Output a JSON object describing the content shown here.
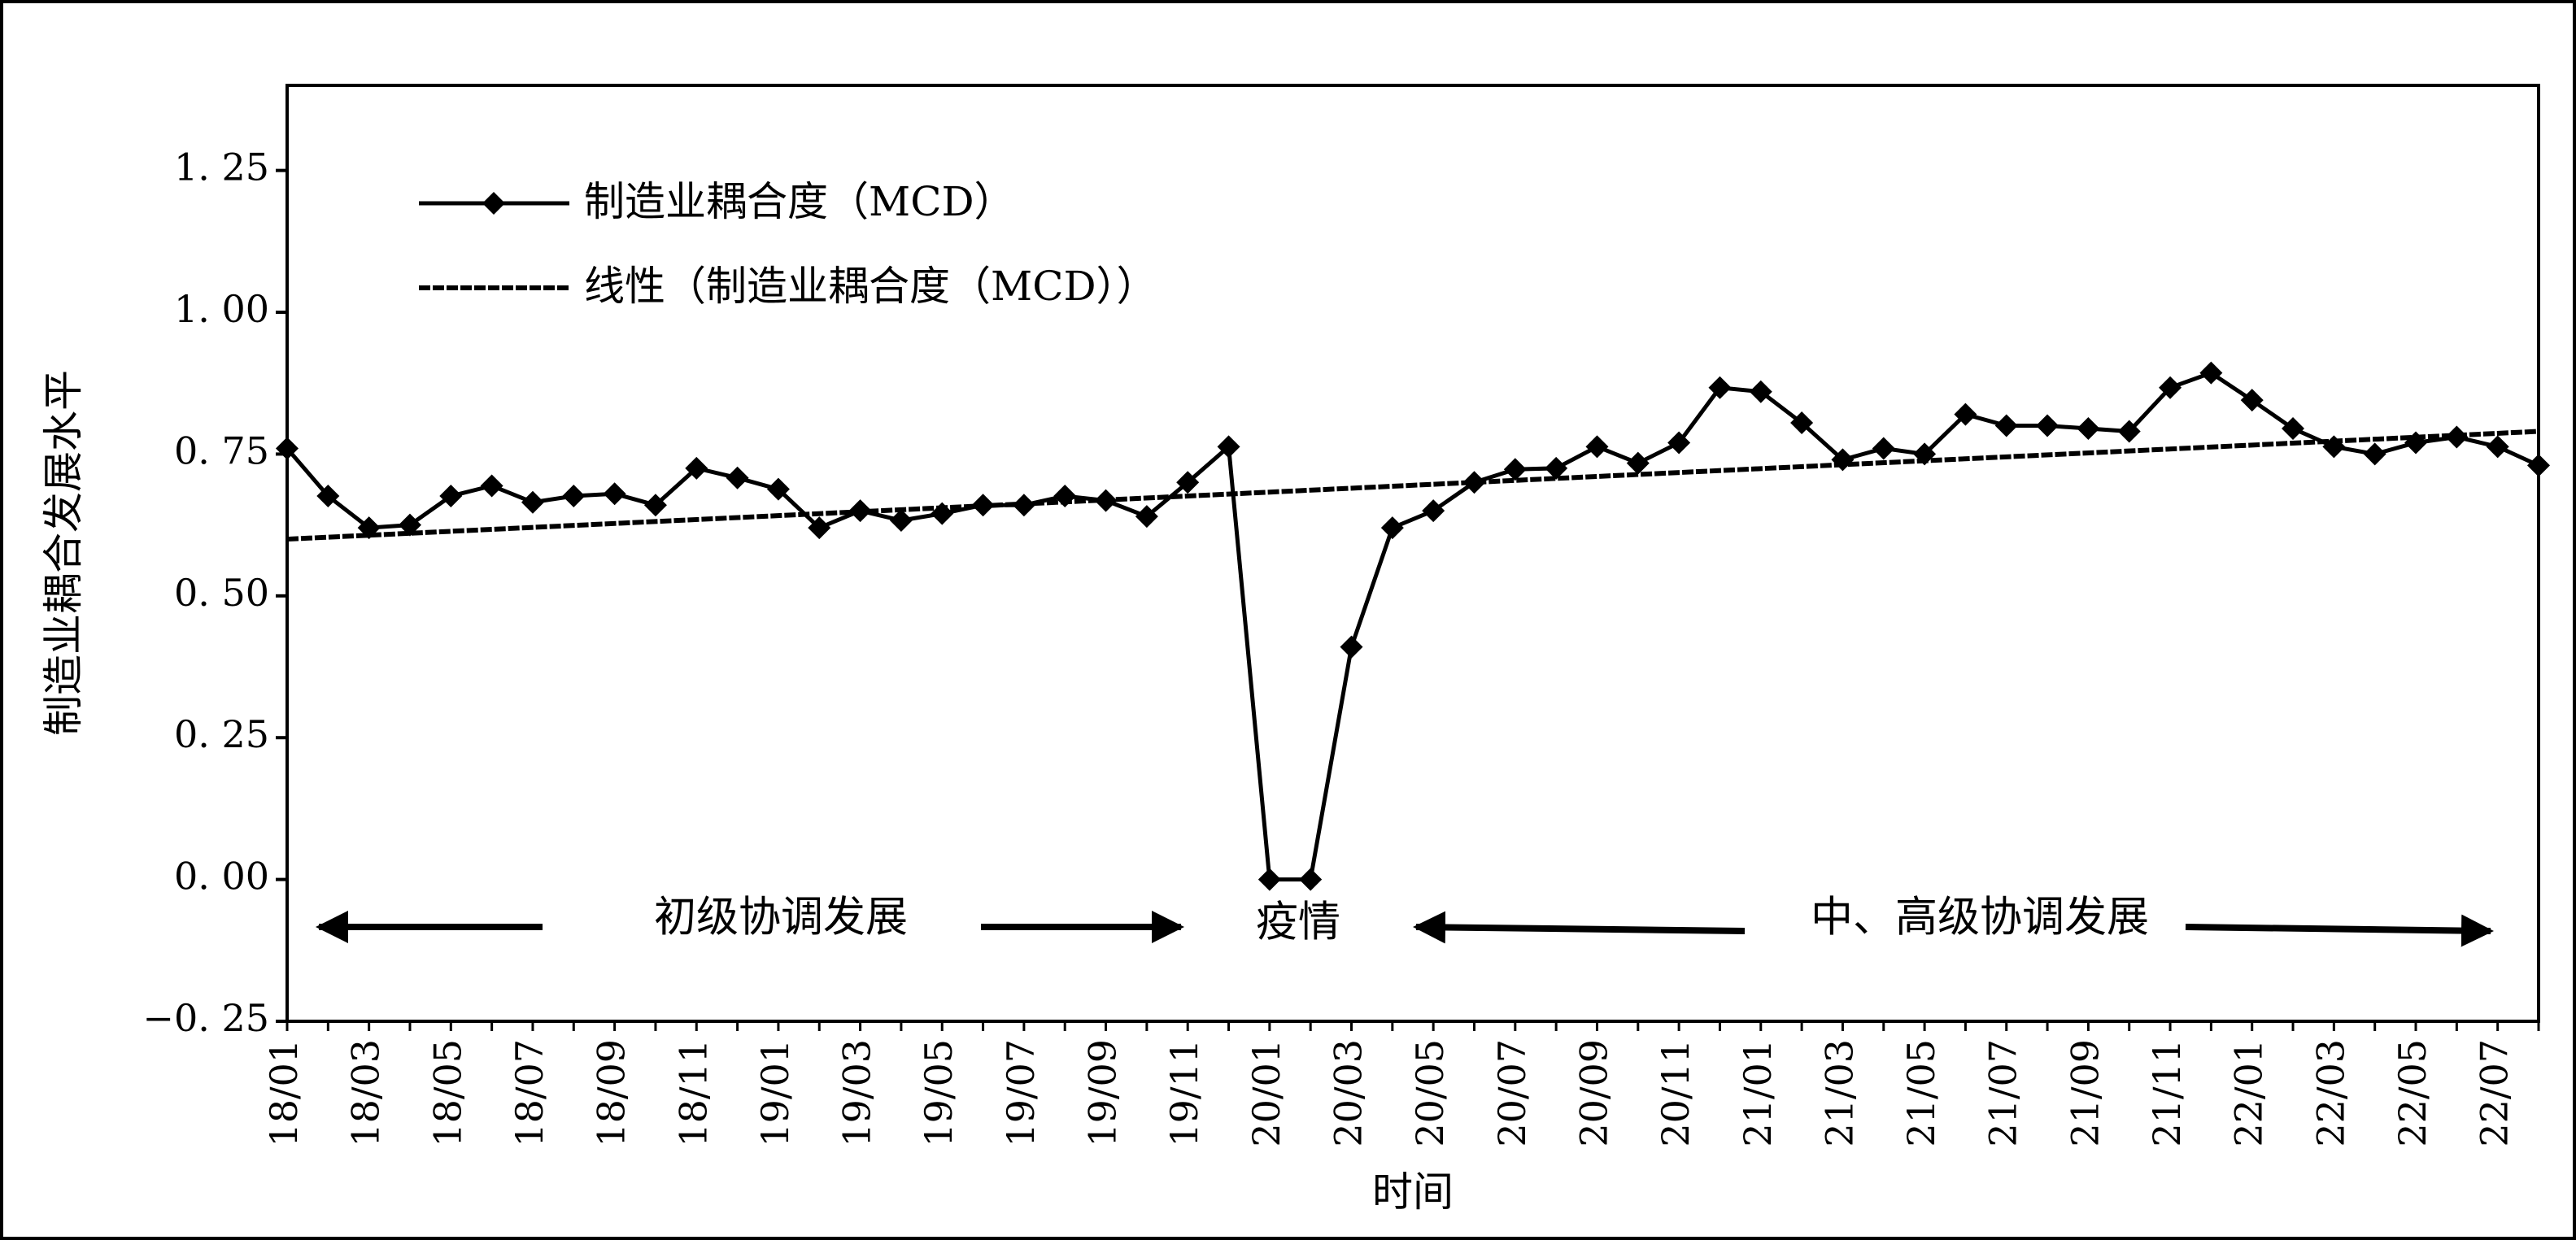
{
  "chart_data": {
    "type": "line",
    "y_label": "制造业耦合发展水平",
    "x_label": "时间",
    "categories": [
      "18/01",
      null,
      "18/03",
      null,
      "18/05",
      null,
      "18/07",
      null,
      "18/09",
      null,
      "18/11",
      null,
      "19/01",
      null,
      "19/03",
      null,
      "19/05",
      null,
      "19/07",
      null,
      "19/09",
      null,
      "19/11",
      null,
      "20/01",
      null,
      "20/03",
      null,
      "20/05",
      null,
      "20/07",
      null,
      "20/09",
      null,
      "20/11",
      null,
      "21/01",
      null,
      "21/03",
      null,
      "21/05",
      null,
      "21/07",
      null,
      "21/09",
      null,
      "21/11",
      null,
      "22/01",
      null,
      "22/03",
      null,
      "22/05",
      null,
      "22/07",
      null
    ],
    "series": [
      {
        "name": "制造业耦合度（MCD）",
        "color": "#000000",
        "values": [
          0.76,
          0.676,
          0.62,
          0.625,
          0.676,
          0.694,
          0.665,
          0.676,
          0.68,
          0.66,
          0.725,
          0.708,
          0.688,
          0.62,
          0.65,
          0.633,
          0.645,
          0.66,
          0.66,
          0.676,
          0.668,
          0.64,
          0.7,
          0.763,
          0,
          0,
          0.41,
          0.62,
          0.65,
          0.7,
          0.723,
          0.725,
          0.763,
          0.734,
          0.77,
          0.867,
          0.86,
          0.805,
          0.74,
          0.76,
          0.75,
          0.82,
          0.8,
          0.8,
          0.795,
          0.79,
          0.867,
          0.893,
          0.845,
          0.795,
          0.763,
          0.75,
          0.77,
          0.78,
          0.763,
          0.73
        ]
      }
    ],
    "trendline": {
      "name": "线性（制造业耦合度（MCD））",
      "color": "#000000",
      "values": [
        0.6,
        0.79
      ]
    },
    "ylim": [
      -0.25,
      1.4
    ],
    "yticks": [
      {
        "value": -0.25,
        "label": "−0. 25"
      },
      {
        "value": 0,
        "label": "0. 00"
      },
      {
        "value": 0.25,
        "label": "0. 25"
      },
      {
        "value": 0.5,
        "label": "0. 50"
      },
      {
        "value": 0.75,
        "label": "0. 75"
      },
      {
        "value": 1,
        "label": "1. 00"
      },
      {
        "value": 1.25,
        "label": "1. 25"
      }
    ],
    "annotations": [
      "初级协调发展",
      "疫情",
      "中、高级协调发展"
    ],
    "legend": "top-left"
  }
}
